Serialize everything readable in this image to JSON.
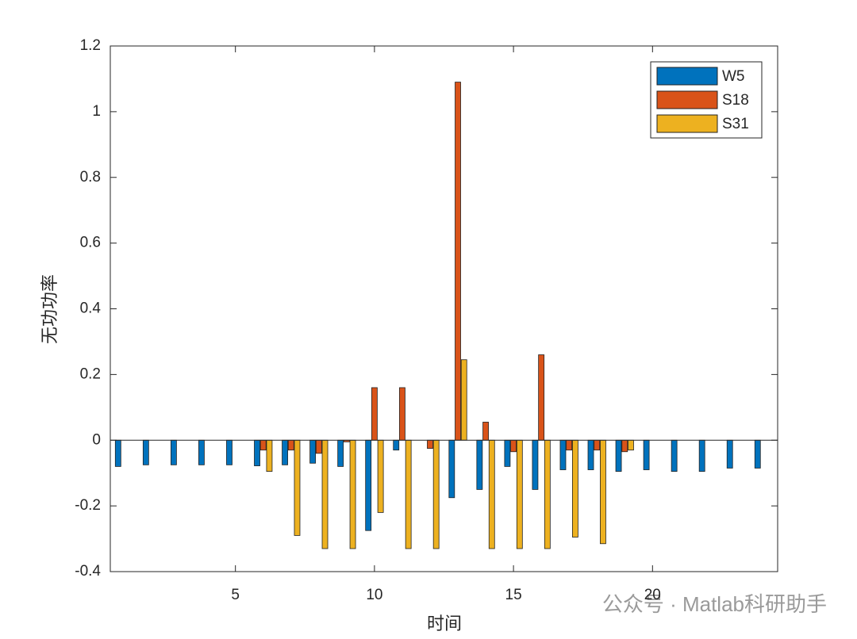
{
  "chart_data": {
    "type": "bar",
    "x_label": "时间",
    "y_label": "无功功率",
    "categories": [
      1,
      2,
      3,
      4,
      5,
      6,
      7,
      8,
      9,
      10,
      11,
      12,
      13,
      14,
      15,
      16,
      17,
      18,
      19,
      20,
      21,
      22,
      23,
      24
    ],
    "series": [
      {
        "name": "W5",
        "color": "#0072bd",
        "values": [
          -0.08,
          -0.075,
          -0.075,
          -0.075,
          -0.075,
          -0.078,
          -0.075,
          -0.07,
          -0.08,
          -0.275,
          -0.03,
          0,
          -0.175,
          -0.15,
          -0.08,
          -0.15,
          -0.09,
          -0.09,
          -0.095,
          -0.09,
          -0.095,
          -0.095,
          -0.085,
          -0.085
        ]
      },
      {
        "name": "S18",
        "color": "#d95319",
        "values": [
          0,
          0,
          0,
          0,
          0,
          -0.03,
          -0.03,
          -0.04,
          -0.005,
          0.16,
          0.16,
          -0.025,
          1.09,
          0.055,
          -0.035,
          0.26,
          -0.03,
          -0.03,
          -0.035,
          0,
          0,
          0,
          0,
          0
        ]
      },
      {
        "name": "S31",
        "color": "#edb120",
        "values": [
          0,
          0,
          0,
          0,
          0,
          -0.095,
          -0.29,
          -0.33,
          -0.33,
          -0.22,
          -0.33,
          -0.33,
          0.245,
          -0.33,
          -0.33,
          -0.33,
          -0.295,
          -0.315,
          -0.03,
          0,
          0,
          0,
          0,
          0
        ]
      }
    ],
    "xlim": [
      0.5,
      24.5
    ],
    "xticks": [
      5,
      10,
      15,
      20
    ],
    "ylim": [
      -0.4,
      1.2
    ],
    "yticks": [
      -0.4,
      -0.2,
      0,
      0.2,
      0.4,
      0.6,
      0.8,
      1,
      1.2
    ],
    "legend": "upper-right",
    "watermark": "公众号 · Matlab科研助手"
  }
}
